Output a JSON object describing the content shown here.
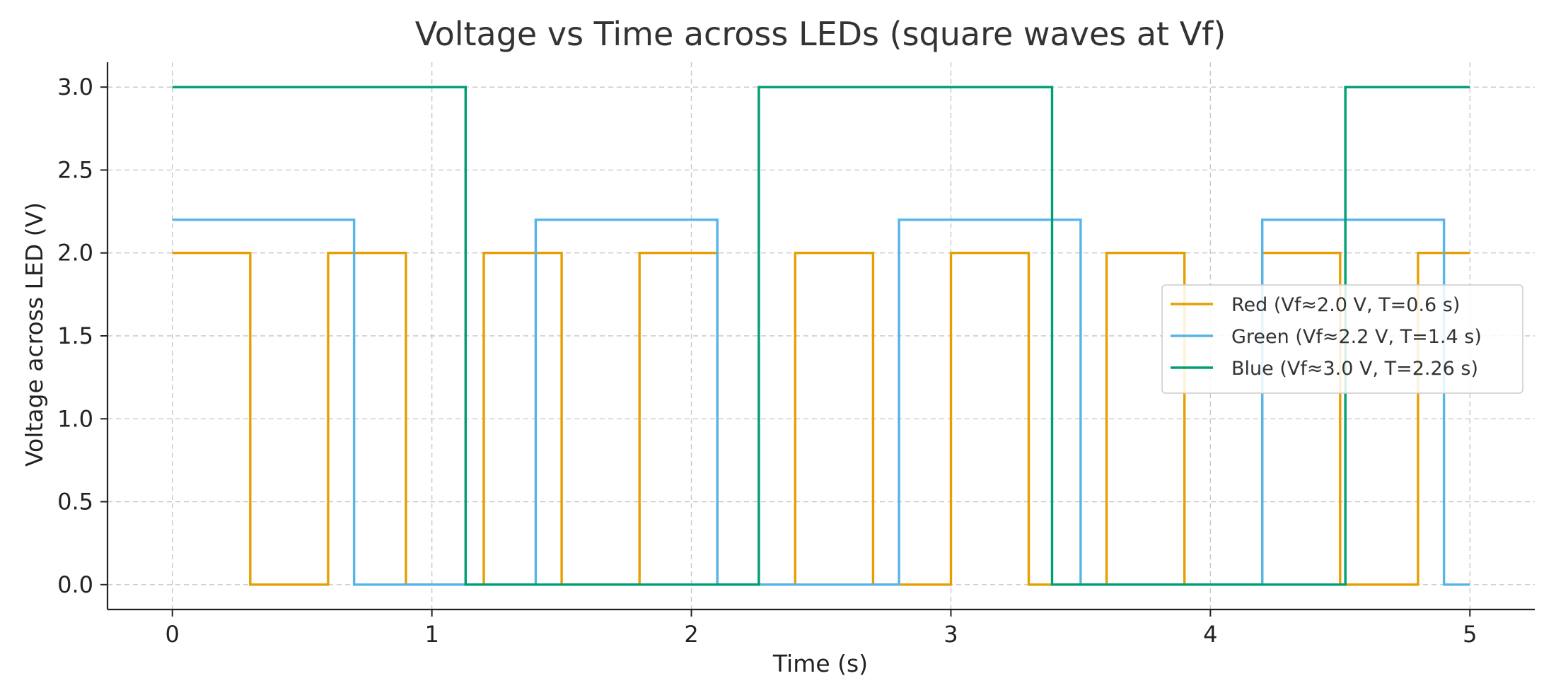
{
  "chart_data": {
    "type": "line",
    "title": "Voltage vs Time across LEDs (square waves at Vf)",
    "xlabel": "Time (s)",
    "ylabel": "Voltage across LED (V)",
    "xlim": [
      -0.25,
      5.25
    ],
    "ylim": [
      -0.15,
      3.15
    ],
    "xticks": [
      0,
      1,
      2,
      3,
      4,
      5
    ],
    "xtick_labels": [
      "0",
      "1",
      "2",
      "3",
      "4",
      "5"
    ],
    "yticks": [
      0.0,
      0.5,
      1.0,
      1.5,
      2.0,
      2.5,
      3.0
    ],
    "ytick_labels": [
      "0.0",
      "0.5",
      "1.0",
      "1.5",
      "2.0",
      "2.5",
      "3.0"
    ],
    "grid": true,
    "legend_position": "center-right",
    "series": [
      {
        "name": "Red (Vf≈2.0 V, T=0.6 s)",
        "color": "#E69F00",
        "x": [
          0,
          0.3,
          0.3,
          0.6,
          0.6,
          0.9,
          0.9,
          1.2,
          1.2,
          1.5,
          1.5,
          1.8,
          1.8,
          2.1,
          2.1,
          2.4,
          2.4,
          2.7,
          2.7,
          3.0,
          3.0,
          3.3,
          3.3,
          3.6,
          3.6,
          3.9,
          3.9,
          4.2,
          4.2,
          4.5,
          4.5,
          4.8,
          4.8,
          5.0
        ],
        "y": [
          2.0,
          2.0,
          0,
          0,
          2.0,
          2.0,
          0,
          0,
          2.0,
          2.0,
          0,
          0,
          2.0,
          2.0,
          0,
          0,
          2.0,
          2.0,
          0,
          0,
          2.0,
          2.0,
          0,
          0,
          2.0,
          2.0,
          0,
          0,
          2.0,
          2.0,
          0,
          0,
          2.0,
          2.0
        ]
      },
      {
        "name": "Green (Vf≈2.2 V, T=1.4 s)",
        "color": "#56B4E9",
        "x": [
          0,
          0.7,
          0.7,
          1.4,
          1.4,
          2.1,
          2.1,
          2.8,
          2.8,
          3.5,
          3.5,
          4.2,
          4.2,
          4.9,
          4.9,
          5.0
        ],
        "y": [
          2.2,
          2.2,
          0,
          0,
          2.2,
          2.2,
          0,
          0,
          2.2,
          2.2,
          0,
          0,
          2.2,
          2.2,
          0,
          0
        ]
      },
      {
        "name": "Blue (Vf≈3.0 V, T=2.26 s)",
        "color": "#009E73",
        "x": [
          0,
          1.13,
          1.13,
          2.26,
          2.26,
          3.39,
          3.39,
          4.52,
          4.52,
          5.0
        ],
        "y": [
          3.0,
          3.0,
          0,
          0,
          3.0,
          3.0,
          0,
          0,
          3.0,
          3.0
        ]
      }
    ]
  }
}
